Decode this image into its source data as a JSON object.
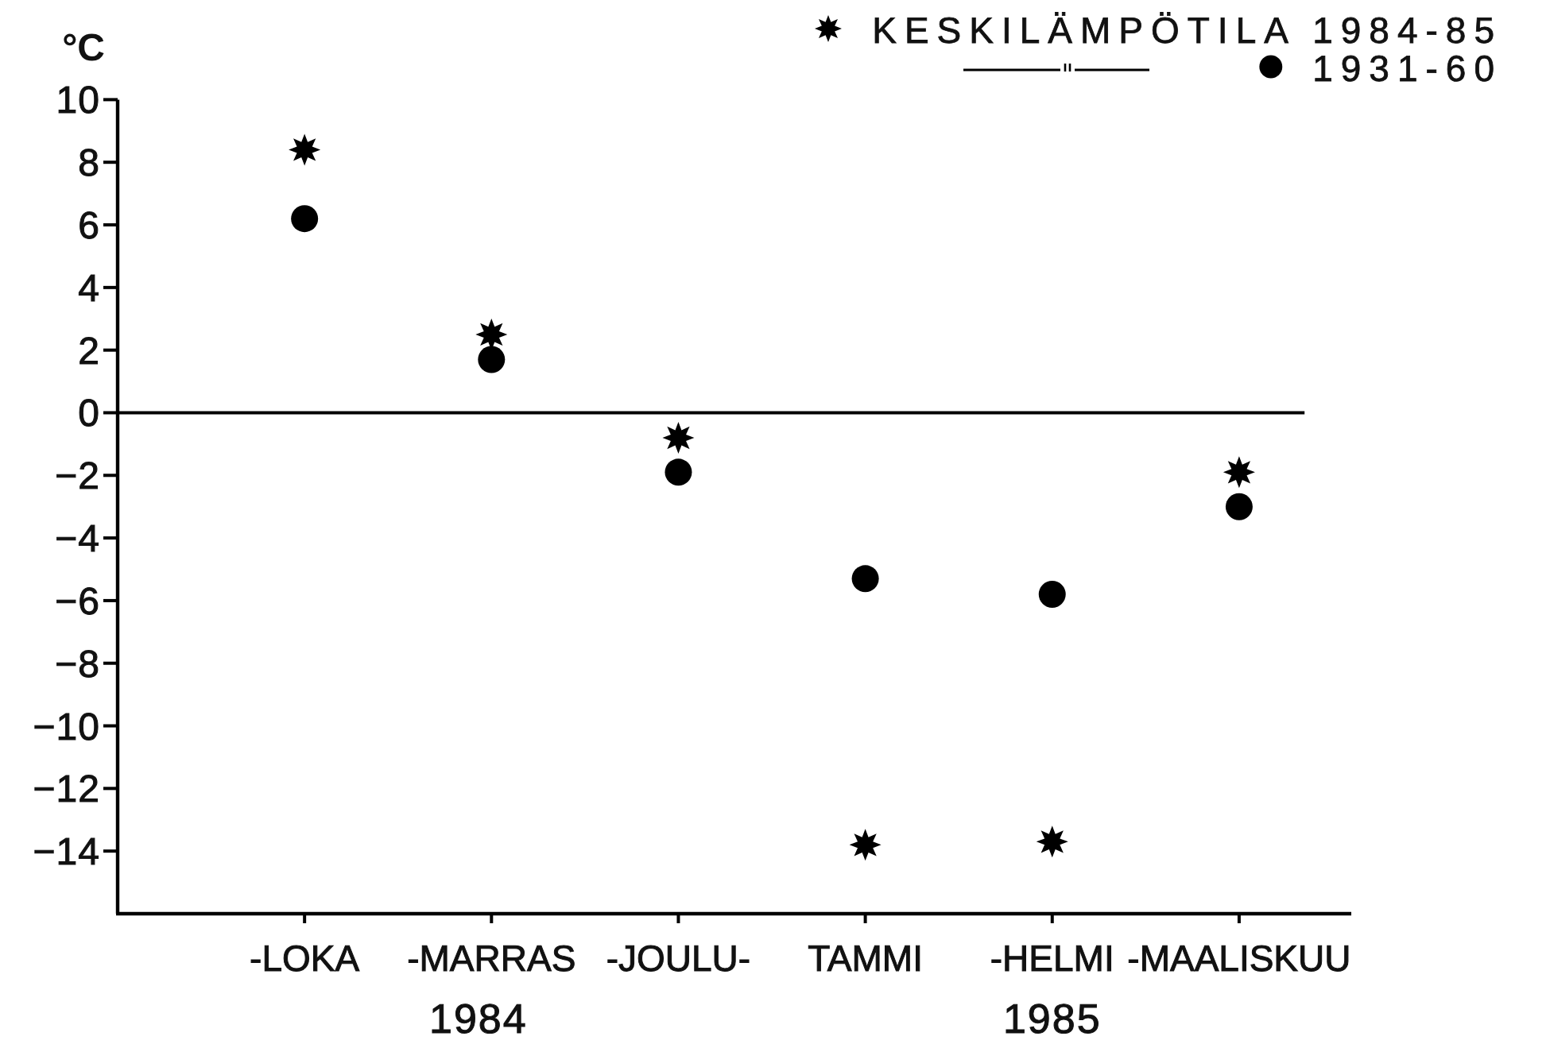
{
  "chart_data": {
    "type": "scatter",
    "ylabel": "°C",
    "categories": [
      "-LOKA",
      "-MARRAS",
      "-JOULU-",
      "TAMMI",
      "-HELMI",
      "-MAALISKUU"
    ],
    "series": [
      {
        "name": "KESKILÄMPÖTILA 1984-85",
        "color": "#000000",
        "marker": "star",
        "values": [
          8.4,
          2.5,
          -0.8,
          -13.8,
          -13.7,
          -1.9
        ]
      },
      {
        "name": "1931-60",
        "color": "#000000",
        "marker": "circle",
        "values": [
          6.2,
          1.7,
          -1.9,
          -5.3,
          -5.8,
          -3.0
        ]
      }
    ],
    "ylim": [
      -16,
      10
    ],
    "yticks": [
      -14,
      -12,
      -10,
      -8,
      -6,
      -4,
      -2,
      0,
      2,
      4,
      6,
      8,
      10
    ],
    "ref_lines": [
      {
        "axis": "y",
        "value": 0
      }
    ],
    "legend": "top right",
    "annotations": [
      "1984",
      "1985"
    ]
  }
}
